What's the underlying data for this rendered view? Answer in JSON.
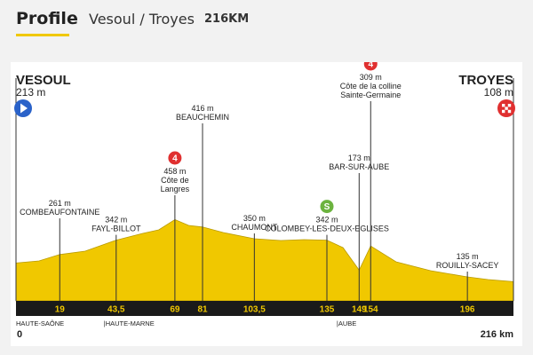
{
  "header": {
    "title": "Profile",
    "route": "Vesoul / Troyes",
    "distance": "216KM"
  },
  "colors": {
    "profile_fill": "#f0c800",
    "profile_dark": "#b89a00",
    "distance_band": "#1a1a1a",
    "km_text": "#f0c800",
    "climb_cat4": "#e03030",
    "sprint": "#6cb33f",
    "start_icon": "#2a62c9",
    "finish_icon": "#e03030"
  },
  "chart_data": {
    "type": "area",
    "x_unit": "km",
    "start": {
      "name": "VESOUL",
      "altitude": "213 m",
      "icon": "play-icon"
    },
    "finish": {
      "name": "TROYES",
      "altitude": "108 m",
      "icon": "checkered-flag-icon"
    },
    "profile": {
      "x": [
        0,
        10,
        19,
        30,
        43.5,
        55,
        62,
        69,
        75,
        81,
        90,
        103.5,
        115,
        125,
        135,
        142,
        149,
        154,
        165,
        180,
        196,
        205,
        216
      ],
      "y": [
        213,
        225,
        261,
        280,
        342,
        380,
        400,
        458,
        425,
        416,
        385,
        350,
        340,
        345,
        342,
        300,
        173,
        309,
        220,
        170,
        135,
        120,
        108
      ]
    },
    "markers": [
      {
        "km": 19,
        "km_label": "19",
        "alt_label": "261 m",
        "name": "COMBEAUFONTAINE"
      },
      {
        "km": 43.5,
        "km_label": "43,5",
        "alt_label": "342 m",
        "name": "FAYL-BILLOT"
      },
      {
        "km": 69,
        "km_label": "69",
        "alt_label": "458 m",
        "name": "Côte de Langres",
        "category": "4"
      },
      {
        "km": 81,
        "km_label": "81",
        "alt_label": "416 m",
        "name": "BEAUCHEMIN"
      },
      {
        "km": 103.5,
        "km_label": "103,5",
        "alt_label": "350 m",
        "name": "CHAUMONT"
      },
      {
        "km": 135,
        "km_label": "135",
        "alt_label": "342 m",
        "name": "COLOMBEY-LES-DEUX-EGLISES",
        "sprint": "S"
      },
      {
        "km": 149,
        "km_label": "149",
        "alt_label": "173 m",
        "name": "BAR-SUR-AUBE"
      },
      {
        "km": 154,
        "km_label": "154",
        "alt_label": "309 m",
        "name": "Côte de la colline Sainte-Germaine",
        "category": "4"
      },
      {
        "km": 196,
        "km_label": "196",
        "alt_label": "135 m",
        "name": "ROUILLY-SACEY"
      }
    ],
    "region_labels": [
      "HAUTE-SAÔNE",
      "HAUTE-MARNE",
      "AUBE"
    ],
    "axis_start": "0",
    "axis_end": "216 km"
  }
}
